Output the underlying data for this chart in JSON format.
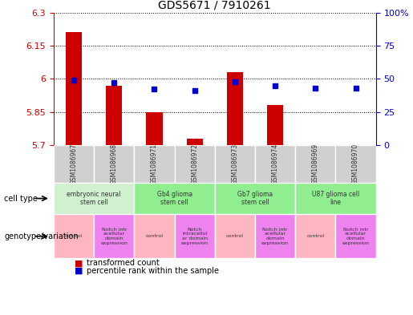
{
  "title": "GDS5671 / 7910261",
  "samples": [
    "GSM1086967",
    "GSM1086968",
    "GSM1086971",
    "GSM1086972",
    "GSM1086973",
    "GSM1086974",
    "GSM1086969",
    "GSM1086970"
  ],
  "transformed_counts": [
    6.21,
    5.97,
    5.85,
    5.73,
    6.03,
    5.88,
    5.7,
    5.7
  ],
  "percentile_ranks": [
    49,
    47,
    42,
    41,
    48,
    45,
    43,
    43
  ],
  "ylim_left": [
    5.7,
    6.3
  ],
  "ylim_right": [
    0,
    100
  ],
  "yticks_left": [
    5.7,
    5.85,
    6.0,
    6.15,
    6.3
  ],
  "yticks_right": [
    0,
    25,
    50,
    75,
    100
  ],
  "ytick_labels_left": [
    "5.7",
    "5.85",
    "6",
    "6.15",
    "6.3"
  ],
  "ytick_labels_right": [
    "0",
    "25",
    "50",
    "75",
    "100%"
  ],
  "cell_types": [
    {
      "label": "embryonic neural\nstem cell",
      "start": 0,
      "end": 2,
      "color": "#d0f0d0"
    },
    {
      "label": "Gb4 glioma\nstem cell",
      "start": 2,
      "end": 4,
      "color": "#90ee90"
    },
    {
      "label": "Gb7 glioma\nstem cell",
      "start": 4,
      "end": 6,
      "color": "#90ee90"
    },
    {
      "label": "U87 glioma cell\nline",
      "start": 6,
      "end": 8,
      "color": "#90ee90"
    }
  ],
  "genotype_variations": [
    {
      "label": "control",
      "start": 0,
      "end": 1,
      "color": "#ffb6c1"
    },
    {
      "label": "Notch intr\nacellular\ndomain\nexpression",
      "start": 1,
      "end": 2,
      "color": "#ee82ee"
    },
    {
      "label": "control",
      "start": 2,
      "end": 3,
      "color": "#ffb6c1"
    },
    {
      "label": "Notch\nintracellul\nar domain\nexpression",
      "start": 3,
      "end": 4,
      "color": "#ee82ee"
    },
    {
      "label": "control",
      "start": 4,
      "end": 5,
      "color": "#ffb6c1"
    },
    {
      "label": "Notch intr\nacellular\ndomain\nexpression",
      "start": 5,
      "end": 6,
      "color": "#ee82ee"
    },
    {
      "label": "control",
      "start": 6,
      "end": 7,
      "color": "#ffb6c1"
    },
    {
      "label": "Notch intr\nacellular\ndomain\nexpression",
      "start": 7,
      "end": 8,
      "color": "#ee82ee"
    }
  ],
  "bar_color": "#cc0000",
  "dot_color": "#0000cc",
  "bar_width": 0.4,
  "baseline": 5.7,
  "grid_color": "#000000",
  "background_color": "#ffffff",
  "sample_label_color": "#404040",
  "left_axis_color": "#cc0000",
  "right_axis_color": "#0000cc"
}
